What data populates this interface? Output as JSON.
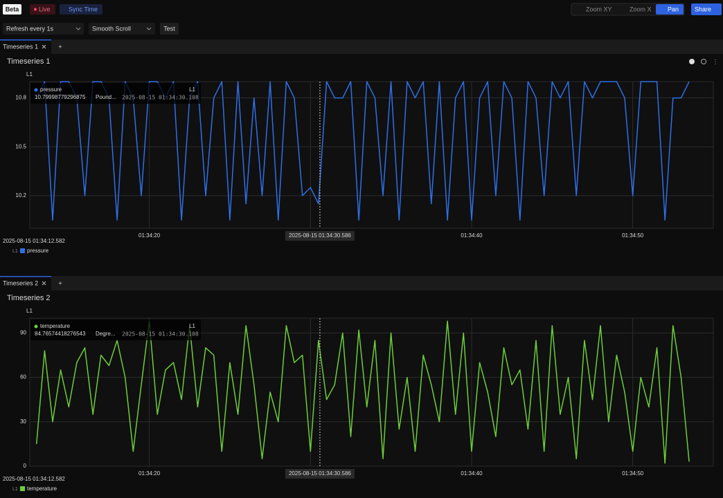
{
  "toolbar": {
    "badge": "Beta",
    "live": "Live",
    "sync": "Sync Time",
    "zoom_xy": "Zoom XY",
    "zoom_x": "Zoom X",
    "pan": "Pan",
    "share": "Share"
  },
  "controls": {
    "refresh": "Refresh every 1s",
    "scroll": "Smooth Scroll",
    "test": "Test"
  },
  "panels": [
    {
      "tab": "Timeseries 1",
      "add_tab": "+",
      "chart_data": {
        "type": "line",
        "title": "Timeseries 1",
        "y_label": "L1",
        "x": [
          13,
          13.5,
          14,
          14.5,
          15,
          15.5,
          16,
          16.5,
          17,
          17.5,
          18,
          18.5,
          19,
          19.5,
          20,
          20.5,
          21,
          21.5,
          22,
          22.5,
          23,
          23.5,
          24,
          24.5,
          25,
          25.5,
          26,
          26.5,
          27,
          27.5,
          28,
          28.5,
          29,
          29.5,
          30,
          30.5,
          31,
          31.5,
          32,
          32.5,
          33,
          33.5,
          34,
          34.5,
          35,
          35.5,
          36,
          36.5,
          37,
          37.5,
          38,
          38.5,
          39,
          39.5,
          40,
          40.5,
          41,
          41.5,
          42,
          42.5,
          43,
          43.5,
          44,
          44.5,
          45,
          45.5,
          46,
          46.5,
          47,
          47.5,
          48,
          48.5,
          49,
          49.5,
          50,
          50.5,
          51,
          51.5,
          52,
          52.5,
          53,
          53.5
        ],
        "xlim": [
          12.582,
          55
        ],
        "xticks": [
          {
            "value": 20,
            "label": "01:34:20"
          },
          {
            "value": 30,
            "label": "01:34:30"
          },
          {
            "value": 40,
            "label": "01:34:40"
          },
          {
            "value": 50,
            "label": "01:34:50"
          }
        ],
        "ylim": [
          10,
          10.9
        ],
        "yticks": [
          10.2,
          10.5,
          10.8
        ],
        "grid": true,
        "series": [
          {
            "name": "pressure",
            "color": "#2f6fe8",
            "values": [
              10.8,
              10.9,
              10.05,
              10.9,
              10.9,
              10.8,
              10.2,
              10.9,
              10.9,
              10.8,
              10.05,
              10.9,
              10.8,
              10.2,
              10.9,
              10.9,
              10.8,
              10.9,
              10.05,
              10.8,
              10.9,
              10.2,
              10.8,
              10.9,
              10.05,
              10.9,
              10.15,
              10.8,
              10.2,
              10.9,
              10.05,
              10.9,
              10.8,
              10.2,
              10.25,
              10.15,
              10.9,
              10.8,
              10.8,
              10.9,
              10.05,
              10.9,
              10.8,
              10.2,
              10.9,
              10.05,
              10.9,
              10.8,
              10.9,
              10.15,
              10.9,
              10.05,
              10.8,
              10.9,
              10.05,
              10.8,
              10.9,
              10.2,
              10.9,
              10.8,
              10.05,
              10.9,
              10.8,
              10.2,
              10.9,
              10.8,
              10.9,
              10.2,
              10.9,
              10.8,
              10.9,
              10.9,
              10.9,
              10.8,
              10.2,
              10.9,
              10.9,
              10.9,
              10.05,
              10.8,
              10.8,
              10.9
            ]
          }
        ],
        "start_label": "2025-08-15 01:34:12.582",
        "cursor": {
          "value": 30.586,
          "label": "2025-08-15 01:34:30.586"
        },
        "tooltip": {
          "name": "pressure",
          "axis": "L1",
          "value": "10.79998779296875",
          "unit": "Pound...",
          "time": "2025-08-15 01:34:30.108"
        },
        "legend_axis": "L1"
      }
    },
    {
      "tab": "Timeseries 2",
      "add_tab": "+",
      "chart_data": {
        "type": "line",
        "title": "Timeseries 2",
        "y_label": "L1",
        "x": [
          13,
          13.5,
          14,
          14.5,
          15,
          15.5,
          16,
          16.5,
          17,
          17.5,
          18,
          18.5,
          19,
          19.5,
          20,
          20.5,
          21,
          21.5,
          22,
          22.5,
          23,
          23.5,
          24,
          24.5,
          25,
          25.5,
          26,
          26.5,
          27,
          27.5,
          28,
          28.5,
          29,
          29.5,
          30,
          30.5,
          31,
          31.5,
          32,
          32.5,
          33,
          33.5,
          34,
          34.5,
          35,
          35.5,
          36,
          36.5,
          37,
          37.5,
          38,
          38.5,
          39,
          39.5,
          40,
          40.5,
          41,
          41.5,
          42,
          42.5,
          43,
          43.5,
          44,
          44.5,
          45,
          45.5,
          46,
          46.5,
          47,
          47.5,
          48,
          48.5,
          49,
          49.5,
          50,
          50.5,
          51,
          51.5,
          52,
          52.5,
          53,
          53.5
        ],
        "xlim": [
          12.582,
          55
        ],
        "xticks": [
          {
            "value": 20,
            "label": "01:34:20"
          },
          {
            "value": 30,
            "label": "01:34:30"
          },
          {
            "value": 40,
            "label": "01:34:40"
          },
          {
            "value": 50,
            "label": "01:34:50"
          }
        ],
        "ylim": [
          0,
          100
        ],
        "yticks": [
          0,
          30,
          60,
          90
        ],
        "grid": true,
        "series": [
          {
            "name": "temperature",
            "color": "#6dce3a",
            "values": [
              15,
              78,
              30,
              65,
              40,
              70,
              80,
              35,
              75,
              68,
              85,
              60,
              10,
              55,
              98,
              35,
              65,
              70,
              45,
              95,
              40,
              80,
              75,
              10,
              70,
              35,
              95,
              55,
              5,
              50,
              30,
              95,
              70,
              75,
              10,
              85,
              45,
              55,
              90,
              20,
              92,
              40,
              85,
              5,
              90,
              25,
              60,
              10,
              75,
              55,
              30,
              98,
              35,
              90,
              10,
              70,
              50,
              20,
              80,
              55,
              65,
              25,
              85,
              10,
              95,
              35,
              60,
              5,
              85,
              45,
              95,
              30,
              75,
              50,
              10,
              60,
              40,
              80,
              2,
              95,
              60,
              3
            ]
          }
        ],
        "start_label": "2025-08-15 01:34:12.582",
        "cursor": {
          "value": 30.586,
          "label": "2025-08-15 01:34:30.586"
        },
        "tooltip": {
          "name": "temperature",
          "axis": "L1",
          "value": "84.76574418276543",
          "unit": "Degre...",
          "time": "2025-08-15 01:34:30.108"
        },
        "legend_axis": "L1"
      }
    }
  ]
}
